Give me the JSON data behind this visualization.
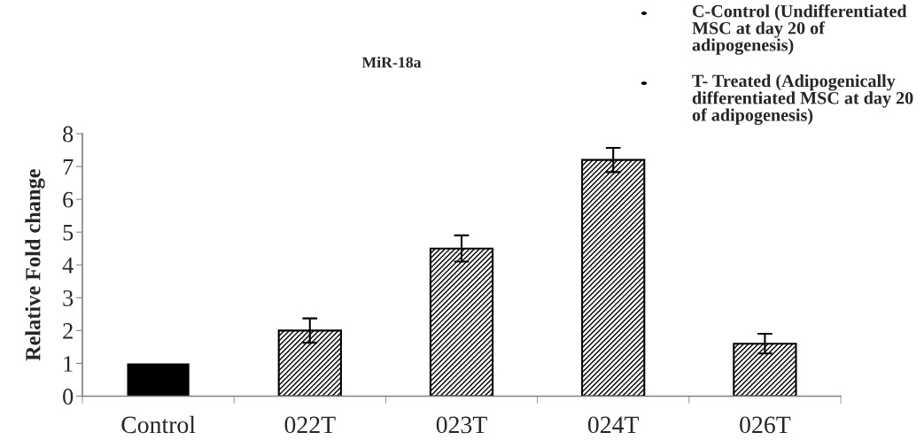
{
  "chart_data": {
    "type": "bar",
    "title": "MiR-18a",
    "ylabel": "Relative Fold change",
    "categories": [
      "Control",
      "022T",
      "023T",
      "024T",
      "026T"
    ],
    "values": [
      1.0,
      2.0,
      4.5,
      7.2,
      1.6
    ],
    "errors": [
      null,
      0.37,
      0.4,
      0.37,
      0.3
    ],
    "colors": [
      "#000000",
      "#ffffff",
      "#ffffff",
      "#ffffff",
      "#ffffff"
    ],
    "ylim": [
      0,
      8
    ],
    "yticks": [
      0,
      1,
      2,
      3,
      4,
      5,
      6,
      7,
      8
    ],
    "grid": false,
    "legend": false,
    "annotations": [
      "C-Control (Undifferentiated MSC at day 20 of adipogenesis)",
      "T- Treated (Adipogenically differentiated MSC at day 20 of adipogenesis)"
    ]
  }
}
